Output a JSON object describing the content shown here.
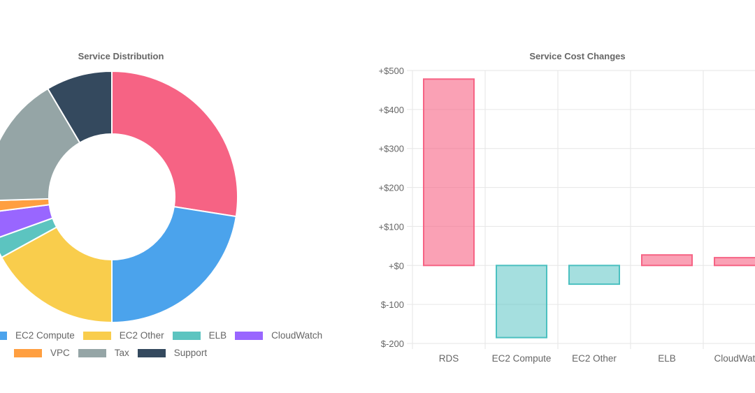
{
  "charts": {
    "donut": {
      "title": "Service Distribution",
      "legend": [
        {
          "label": "EC2 Compute",
          "color": "#4ba3ec"
        },
        {
          "label": "EC2 Other",
          "color": "#f9cd4c"
        },
        {
          "label": "ELB",
          "color": "#5cc4c0"
        },
        {
          "label": "CloudWatch",
          "color": "#9966ff"
        },
        {
          "label": "VPC",
          "color": "#ff9f40"
        },
        {
          "label": "Tax",
          "color": "#95a5a6"
        },
        {
          "label": "Support",
          "color": "#34495e"
        }
      ]
    },
    "bar": {
      "title": "Service Cost Changes"
    }
  },
  "chart_data": [
    {
      "type": "pie",
      "title": "Service Distribution",
      "labels": [
        "RDS",
        "EC2 Compute",
        "EC2 Other",
        "ELB",
        "CloudWatch",
        "VPC",
        "Tax",
        "Support"
      ],
      "values": [
        27.5,
        22.5,
        17,
        2.5,
        3.5,
        1.5,
        17,
        8.5
      ],
      "colors": [
        "#f66384",
        "#4ba3ec",
        "#f9cd4c",
        "#5cc4c0",
        "#9966ff",
        "#ff9f40",
        "#95a5a6",
        "#34495e"
      ],
      "legend_visible": [
        "EC2 Compute",
        "EC2 Other",
        "ELB",
        "CloudWatch",
        "VPC",
        "Tax",
        "Support"
      ],
      "cutout": "50%"
    },
    {
      "type": "bar",
      "title": "Service Cost Changes",
      "categories": [
        "RDS",
        "EC2 Compute",
        "EC2 Other",
        "ELB",
        "CloudWatch"
      ],
      "values": [
        478,
        -185,
        -48,
        27,
        20
      ],
      "ylim": [
        -200,
        500
      ],
      "yticks": [
        500,
        400,
        300,
        200,
        100,
        0,
        -100,
        -200
      ],
      "ytick_labels": [
        "+$500",
        "+$400",
        "+$300",
        "+$200",
        "+$100",
        "+$0",
        "$-100",
        "$-200"
      ],
      "positive_color": "#f66384",
      "negative_color": "#4bc0c0",
      "grid": true
    }
  ]
}
